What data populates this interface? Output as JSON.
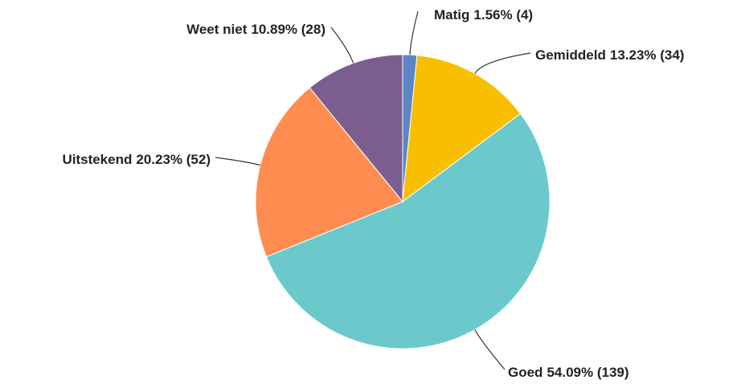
{
  "chart_data": {
    "type": "pie",
    "categories": [
      "Matig",
      "Gemiddeld",
      "Goed",
      "Uitstekend",
      "Weet niet"
    ],
    "values": [
      1.56,
      13.23,
      54.09,
      20.23,
      10.89
    ],
    "value_labels": [
      "1.56% (4)",
      "13.23% (34)",
      "54.09% (139)",
      "20.23% (52)",
      "10.89% (28)"
    ],
    "colors": [
      "#5b86c4",
      "#f8be00",
      "#6bc9cc",
      "#ff8c50",
      "#7b5e8f"
    ]
  }
}
